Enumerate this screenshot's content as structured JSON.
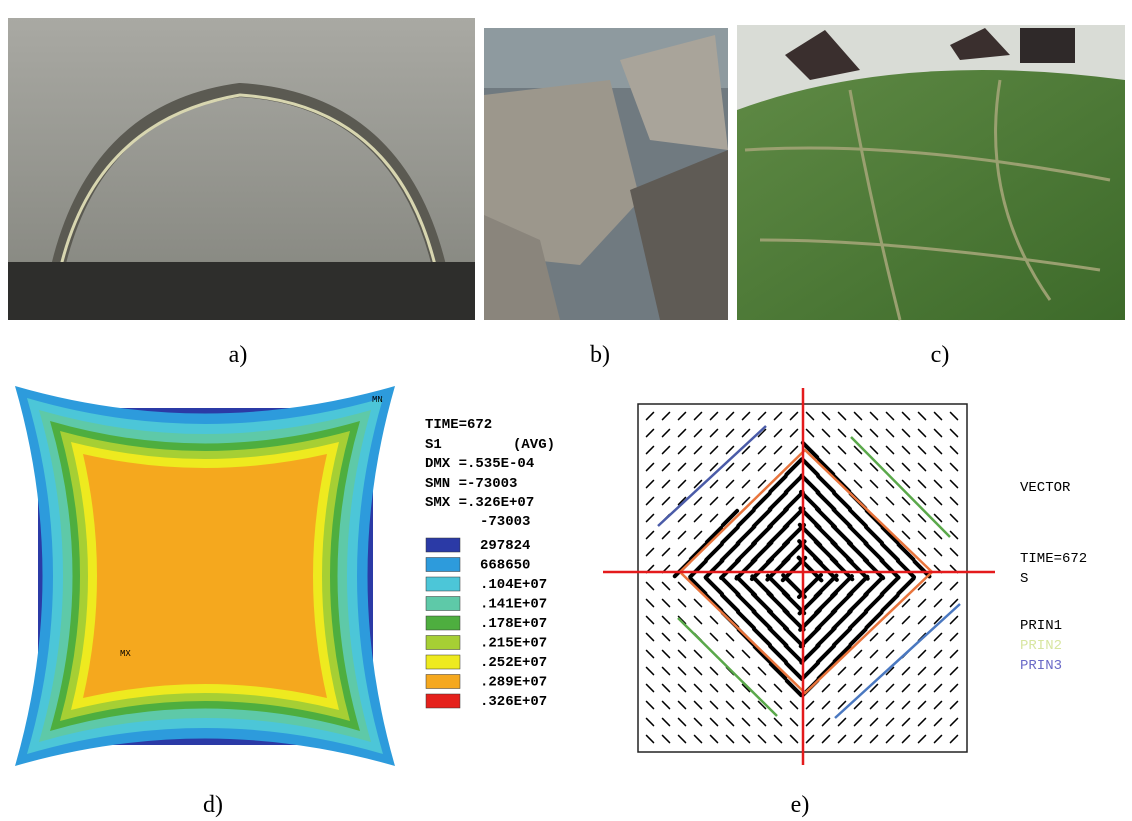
{
  "captions": [
    "a)",
    "b)",
    "c)",
    "d)",
    "e)"
  ],
  "panel_d": {
    "corner_mn": "MN",
    "corner_mx": "MX",
    "time": "TIME=672",
    "item": "S1",
    "avg": "(AVG)",
    "dmx": "DMX =.535E-04",
    "smn": "SMN =-73003",
    "smx": "SMX =.326E+07",
    "min_level": "-73003",
    "legend": [
      {
        "label": "297824",
        "color": "#2b3aa6"
      },
      {
        "label": "668650",
        "color": "#2d9bdc"
      },
      {
        "label": ".104E+07",
        "color": "#4cc6d8"
      },
      {
        "label": ".141E+07",
        "color": "#5ec9a8"
      },
      {
        "label": ".178E+07",
        "color": "#4eae3f"
      },
      {
        "label": ".215E+07",
        "color": "#a6cf34"
      },
      {
        "label": ".252E+07",
        "color": "#eeea1f"
      },
      {
        "label": ".289E+07",
        "color": "#f5a81e"
      },
      {
        "label": ".326E+07",
        "color": "#e5211c"
      }
    ]
  },
  "panel_e": {
    "vector": "VECTOR",
    "time": "TIME=672",
    "item": "S",
    "prin1": "PRIN1",
    "prin2": "PRIN2",
    "prin3": "PRIN3"
  }
}
